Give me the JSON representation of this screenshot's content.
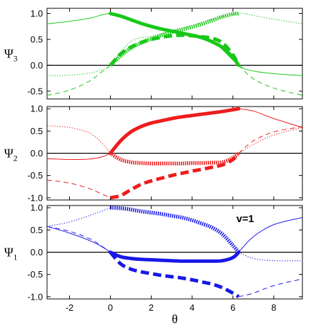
{
  "chart_data": [
    {
      "type": "line",
      "ylabel_main": "Ψ",
      "ylabel_sub": "3",
      "color": "#18c818",
      "xlim": [
        -3.1,
        9.4
      ],
      "ylim": [
        -0.65,
        1.1
      ],
      "xticks": [
        -2,
        0,
        2,
        4,
        6,
        8
      ],
      "yticks": [
        {
          "value": 1.0,
          "label": "1.0"
        },
        {
          "value": 0.5,
          "label": "0.5"
        },
        {
          "value": 0.0,
          "label": "0.0"
        },
        {
          "value": -0.5,
          "label": "-0.5"
        }
      ],
      "annotation": "",
      "series": [
        {
          "style": "thin-solid",
          "x": [
            -3.1,
            -2,
            -1,
            0,
            1,
            2,
            3,
            4,
            5,
            6.28,
            7,
            8,
            9.4
          ],
          "y": [
            0.8,
            0.85,
            0.91,
            1.0,
            0.9,
            0.77,
            0.66,
            0.57,
            0.47,
            0.0,
            -0.11,
            -0.16,
            -0.2
          ]
        },
        {
          "style": "thick-solid",
          "x": [
            0,
            0.5,
            1,
            1.5,
            2,
            2.5,
            3,
            3.5,
            4,
            4.5,
            5,
            5.5,
            6,
            6.28
          ],
          "y": [
            1.0,
            0.95,
            0.88,
            0.81,
            0.75,
            0.7,
            0.66,
            0.62,
            0.58,
            0.53,
            0.45,
            0.34,
            0.15,
            0.0
          ]
        },
        {
          "style": "thin-dotted",
          "x": [
            -3.1,
            -2,
            -1,
            -0.4,
            0,
            1,
            2,
            3,
            4,
            5,
            6.28,
            7,
            8,
            9.4
          ],
          "y": [
            -0.2,
            -0.19,
            -0.15,
            -0.08,
            0.0,
            0.46,
            0.56,
            0.66,
            0.77,
            0.89,
            1.0,
            0.96,
            0.89,
            0.8
          ]
        },
        {
          "style": "thick-dotted",
          "x": [
            0,
            0.5,
            1,
            1.5,
            2,
            2.5,
            3,
            3.5,
            4,
            4.5,
            5,
            5.5,
            6,
            6.28
          ],
          "y": [
            0.0,
            0.18,
            0.33,
            0.43,
            0.51,
            0.58,
            0.64,
            0.69,
            0.74,
            0.8,
            0.87,
            0.94,
            0.99,
            1.0
          ]
        },
        {
          "style": "thin-dashed",
          "x": [
            -3.1,
            -2,
            -1,
            -0.4,
            0
          ],
          "y": [
            -0.58,
            -0.48,
            -0.3,
            -0.12,
            0.0
          ]
        },
        {
          "style": "thin-dashed",
          "x": [
            6.28,
            7,
            8,
            9.4
          ],
          "y": [
            0.0,
            -0.26,
            -0.44,
            -0.58
          ]
        },
        {
          "style": "thick-dashed",
          "x": [
            0,
            0.5,
            1,
            1.5,
            2,
            2.5,
            3,
            3.5,
            4,
            4.5,
            5,
            5.5,
            6,
            6.28
          ],
          "y": [
            0.0,
            0.22,
            0.35,
            0.44,
            0.5,
            0.54,
            0.57,
            0.58,
            0.57,
            0.55,
            0.52,
            0.43,
            0.2,
            0.0
          ]
        }
      ]
    },
    {
      "type": "line",
      "ylabel_main": "Ψ",
      "ylabel_sub": "2",
      "color": "#ee1c1c",
      "xlim": [
        -3.1,
        9.4
      ],
      "ylim": [
        -1.05,
        1.05
      ],
      "xticks": [
        -2,
        0,
        2,
        4,
        6,
        8
      ],
      "yticks": [
        {
          "value": 1.0,
          "label": "1.0"
        },
        {
          "value": 0.5,
          "label": "0.5"
        },
        {
          "value": 0.0,
          "label": "0.0"
        },
        {
          "value": -0.5,
          "label": "-0.5"
        },
        {
          "value": -1.0,
          "label": "-1.0"
        }
      ],
      "annotation": "",
      "series": [
        {
          "style": "thin-solid",
          "x": [
            -3.1,
            -2,
            -1,
            -0.4,
            0
          ],
          "y": [
            -0.12,
            -0.14,
            -0.13,
            -0.08,
            0.0
          ]
        },
        {
          "style": "thin-solid",
          "x": [
            6.28,
            7,
            8,
            9.4
          ],
          "y": [
            1.0,
            0.95,
            0.78,
            0.58
          ]
        },
        {
          "style": "thick-solid",
          "x": [
            0,
            0.5,
            1,
            1.5,
            2,
            2.5,
            3,
            3.5,
            4,
            4.5,
            5,
            5.5,
            6,
            6.28
          ],
          "y": [
            0.0,
            0.28,
            0.48,
            0.6,
            0.68,
            0.73,
            0.78,
            0.82,
            0.85,
            0.88,
            0.91,
            0.94,
            0.98,
            1.0
          ]
        },
        {
          "style": "thin-dotted",
          "x": [
            -3.1,
            -2,
            -1,
            -0.4,
            0
          ],
          "y": [
            0.62,
            0.58,
            0.45,
            0.22,
            0.0
          ]
        },
        {
          "style": "thin-dotted",
          "x": [
            6.28,
            7,
            8,
            9.4
          ],
          "y": [
            0.0,
            0.2,
            0.41,
            0.58
          ]
        },
        {
          "style": "thick-dotted",
          "x": [
            0,
            0.5,
            1,
            1.5,
            2,
            2.5,
            3,
            3.5,
            4,
            4.5,
            5,
            5.5,
            6,
            6.28
          ],
          "y": [
            0.0,
            -0.14,
            -0.2,
            -0.22,
            -0.23,
            -0.23,
            -0.23,
            -0.23,
            -0.22,
            -0.22,
            -0.21,
            -0.2,
            -0.1,
            0.0
          ]
        },
        {
          "style": "thin-dashed",
          "x": [
            -3.1,
            -2,
            -1,
            -0.4,
            0
          ],
          "y": [
            -0.6,
            -0.67,
            -0.8,
            -0.92,
            -1.0
          ]
        },
        {
          "style": "thin-dashed",
          "x": [
            6.28,
            7,
            8,
            9.4
          ],
          "y": [
            0.0,
            0.28,
            0.48,
            0.6
          ]
        },
        {
          "style": "thick-dashed",
          "x": [
            0,
            0.5,
            1,
            1.5,
            2,
            2.5,
            3,
            3.5,
            4,
            4.5,
            5,
            5.5,
            6,
            6.28
          ],
          "y": [
            -1.0,
            -0.95,
            -0.82,
            -0.7,
            -0.62,
            -0.56,
            -0.5,
            -0.45,
            -0.4,
            -0.36,
            -0.31,
            -0.26,
            -0.14,
            0.0
          ]
        }
      ]
    },
    {
      "type": "line",
      "ylabel_main": "Ψ",
      "ylabel_sub": "1",
      "color": "#1818e8",
      "xlim": [
        -3.1,
        9.4
      ],
      "ylim": [
        -1.05,
        1.05
      ],
      "xticks": [
        -2,
        0,
        2,
        4,
        6,
        8
      ],
      "yticks": [
        {
          "value": 1.0,
          "label": "1.0"
        },
        {
          "value": 0.5,
          "label": "0.5"
        },
        {
          "value": 0.0,
          "label": "0.0"
        },
        {
          "value": -0.5,
          "label": "-0.5"
        },
        {
          "value": -1.0,
          "label": "-1.0"
        }
      ],
      "xlabel": "θ",
      "annotation": "v=1",
      "series": [
        {
          "style": "thin-solid",
          "x": [
            -3.1,
            -2,
            -1,
            -0.4,
            0
          ],
          "y": [
            0.58,
            0.43,
            0.26,
            0.12,
            0.0
          ]
        },
        {
          "style": "thin-solid",
          "x": [
            6.28,
            7,
            8,
            9.4
          ],
          "y": [
            0.0,
            0.35,
            0.62,
            0.78
          ]
        },
        {
          "style": "thick-solid",
          "x": [
            0,
            0.5,
            1,
            1.5,
            2,
            2.5,
            3,
            3.5,
            4,
            4.5,
            5,
            5.5,
            6,
            6.28
          ],
          "y": [
            0.0,
            -0.1,
            -0.14,
            -0.16,
            -0.17,
            -0.18,
            -0.19,
            -0.2,
            -0.2,
            -0.2,
            -0.2,
            -0.19,
            -0.12,
            0.0
          ]
        },
        {
          "style": "thin-dotted",
          "x": [
            -3.1,
            -2,
            -1,
            -0.4,
            0
          ],
          "y": [
            0.58,
            0.68,
            0.83,
            0.93,
            1.0
          ]
        },
        {
          "style": "thin-dotted",
          "x": [
            6.28,
            7,
            8,
            9.4
          ],
          "y": [
            0.0,
            -0.14,
            -0.19,
            -0.19
          ]
        },
        {
          "style": "thick-dotted",
          "x": [
            0,
            0.5,
            1,
            1.5,
            2,
            2.5,
            3,
            3.5,
            4,
            4.5,
            5,
            5.5,
            6,
            6.28
          ],
          "y": [
            1.0,
            0.99,
            0.96,
            0.92,
            0.89,
            0.86,
            0.82,
            0.78,
            0.72,
            0.64,
            0.55,
            0.4,
            0.15,
            0.0
          ]
        },
        {
          "style": "thin-dashed",
          "x": [
            -3.1,
            -2,
            -1,
            -0.4,
            0
          ],
          "y": [
            0.58,
            0.47,
            0.3,
            0.13,
            0.0
          ]
        },
        {
          "style": "thin-dashed",
          "x": [
            6.28,
            7,
            8,
            9.4
          ],
          "y": [
            -1.0,
            -0.92,
            -0.75,
            -0.6
          ]
        },
        {
          "style": "thick-dashed",
          "x": [
            0,
            0.5,
            1,
            1.5,
            2,
            2.5,
            3,
            3.5,
            4,
            4.5,
            5,
            5.5,
            6,
            6.28
          ],
          "y": [
            0.0,
            -0.26,
            -0.38,
            -0.44,
            -0.48,
            -0.52,
            -0.55,
            -0.58,
            -0.62,
            -0.67,
            -0.72,
            -0.8,
            -0.92,
            -1.0
          ]
        }
      ]
    }
  ]
}
